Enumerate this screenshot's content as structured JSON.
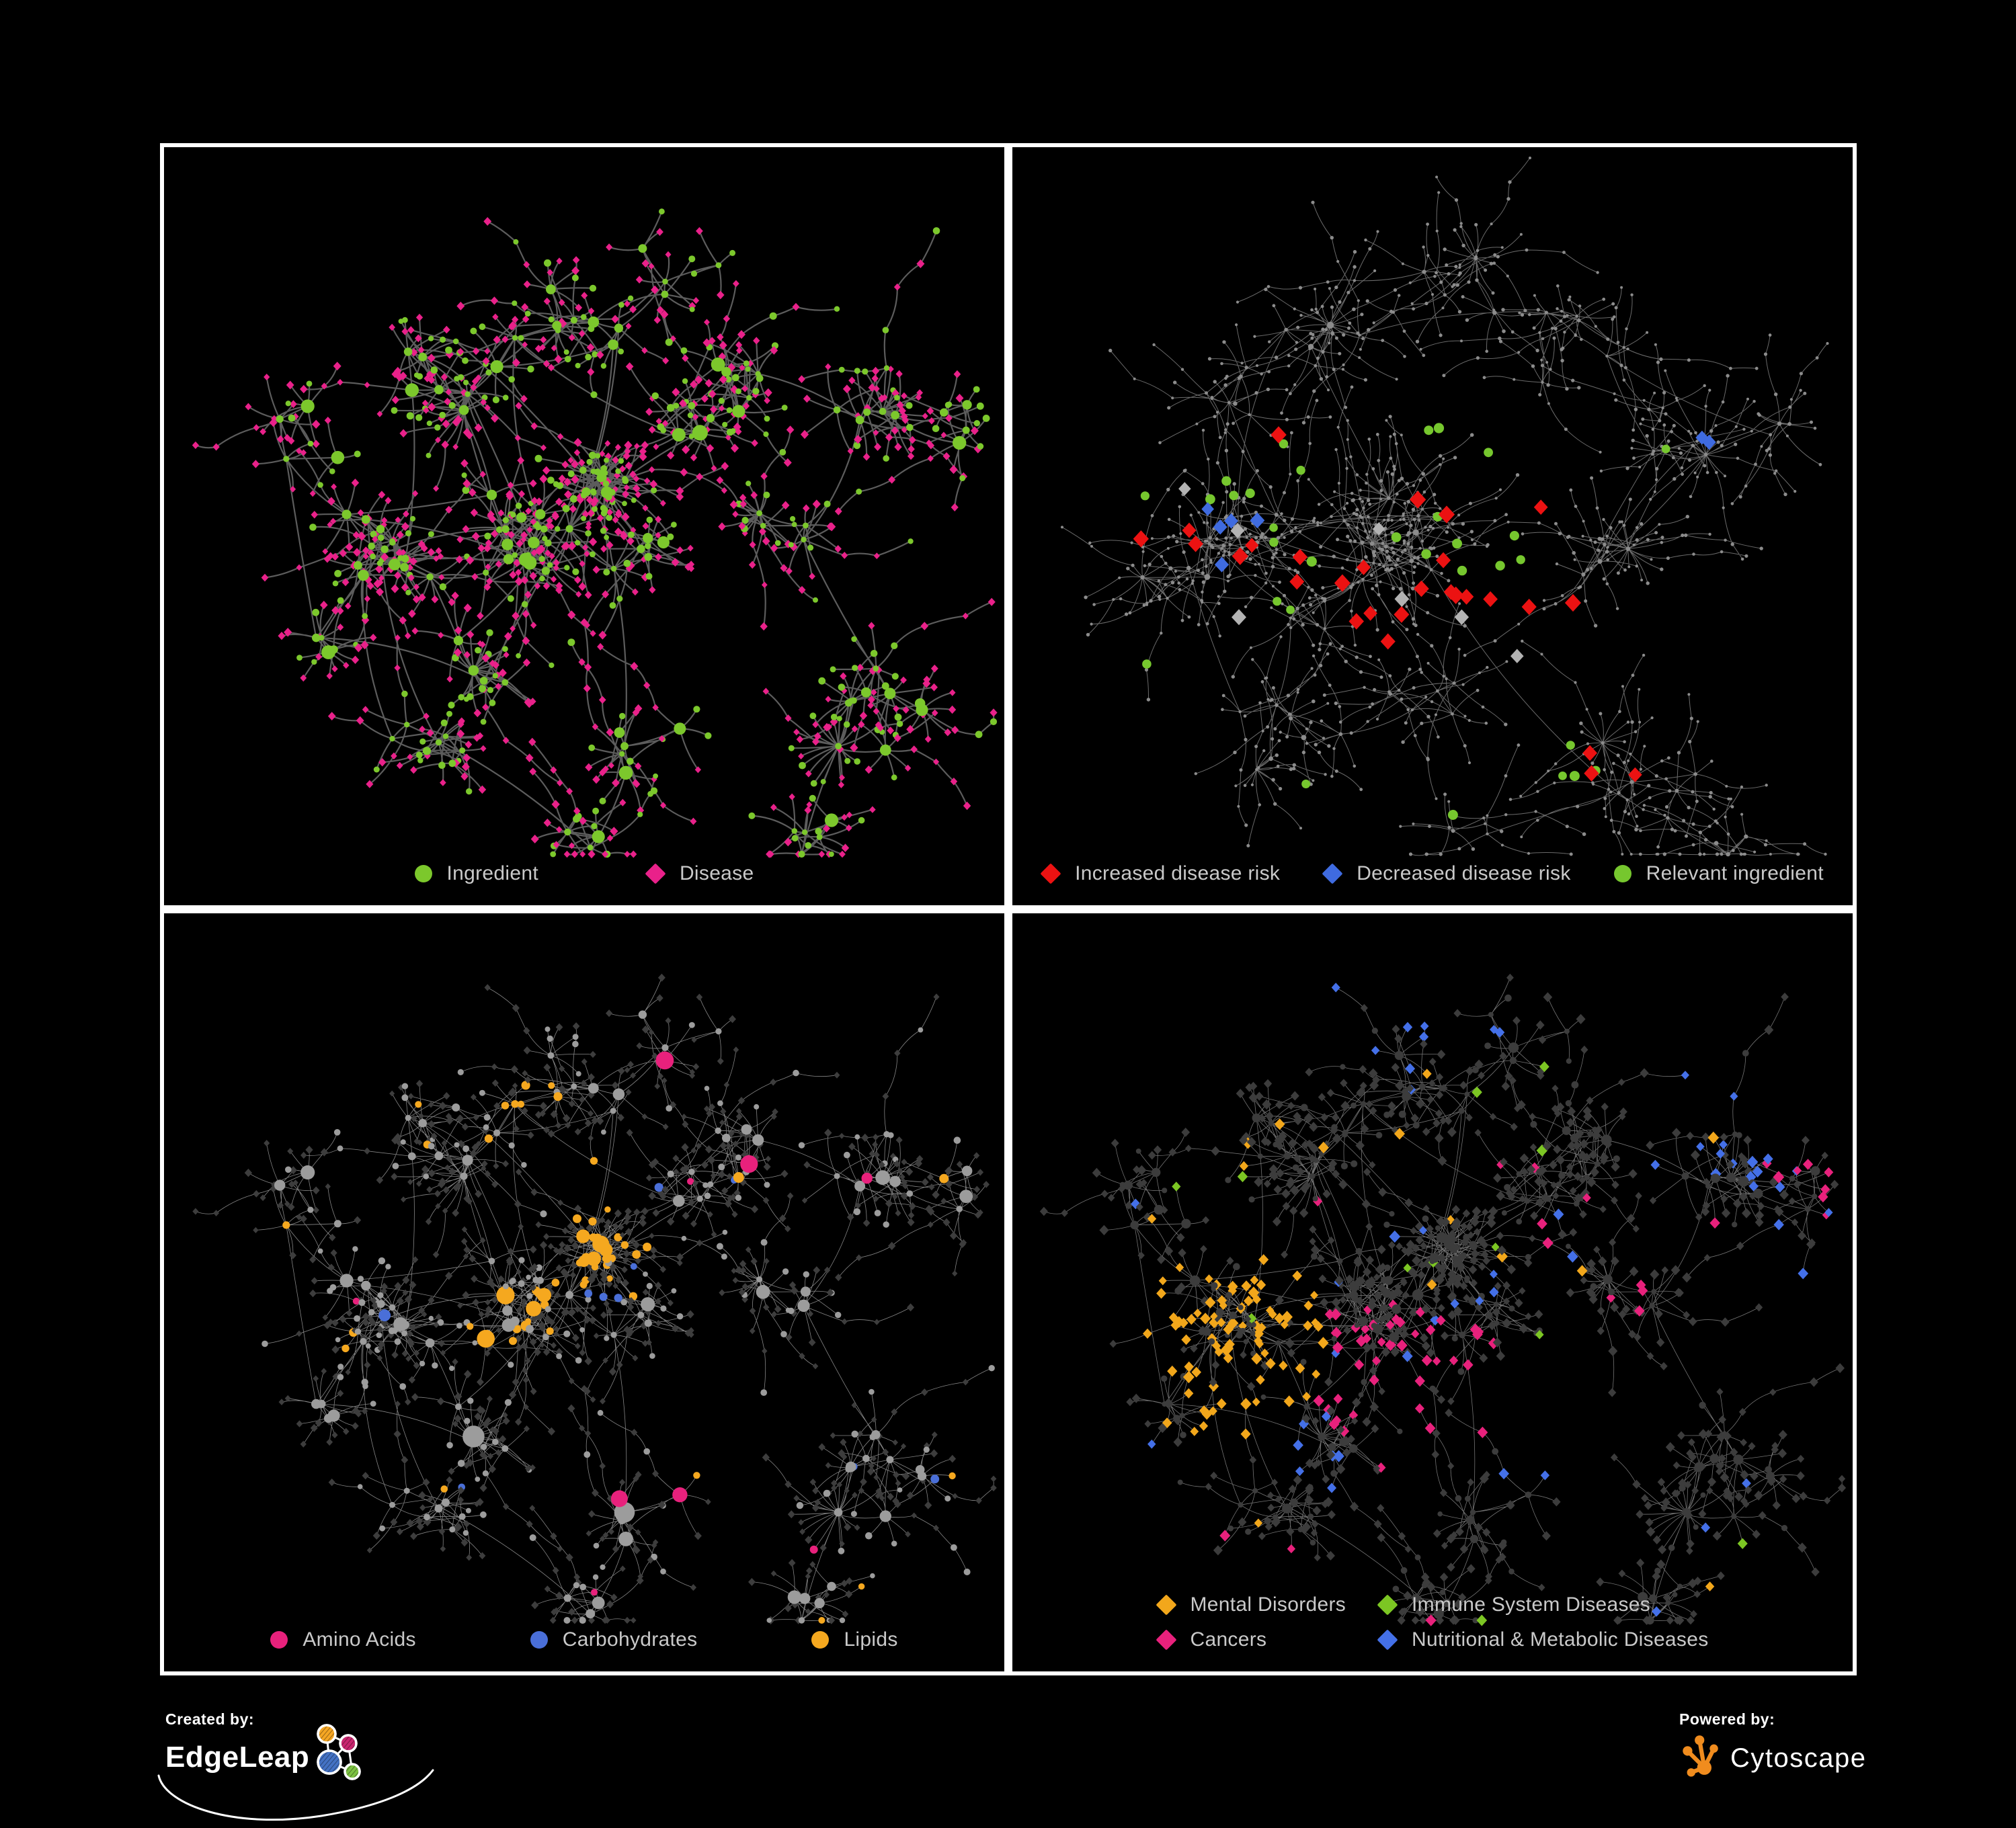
{
  "page": {
    "background": "#000000",
    "frame_color": "#FFFFFF"
  },
  "panels": [
    {
      "key": "ingredient-disease",
      "legend": {
        "columns": 1,
        "gap": 160,
        "items": [
          {
            "shape": "circle",
            "color": "#7CC82C",
            "label": "Ingredient"
          },
          {
            "shape": "diamond",
            "color": "#E9218A",
            "label": "Disease"
          }
        ]
      },
      "network": {
        "layout": "A",
        "seed": 11,
        "edge": {
          "color": "#6C6C6C",
          "width": 2.2,
          "opacity": 0.85
        },
        "hub": {
          "shape": "circle",
          "color": "#7CC82C",
          "rMin": 4.2,
          "rMax": 10.5
        },
        "leafGroups": [
          {
            "shape": "diamond",
            "color": "#E9218A",
            "size": 5.6,
            "weight": 0.72
          },
          {
            "shape": "circle",
            "color": "#7CC82C",
            "size": 4.6,
            "weight": 0.28
          }
        ],
        "recolor": [],
        "overlays": []
      }
    },
    {
      "key": "disease-risk",
      "legend": {
        "columns": 1,
        "gap": 64,
        "items": [
          {
            "shape": "diamond",
            "color": "#EC1212",
            "label": "Increased disease risk"
          },
          {
            "shape": "diamond",
            "color": "#3F6BE0",
            "label": "Decreased disease risk"
          },
          {
            "shape": "circle",
            "color": "#76C72E",
            "label": "Relevant ingredient"
          }
        ]
      },
      "network": {
        "layout": "B",
        "seed": 23,
        "edge": {
          "color": "#767676",
          "width": 1.0,
          "opacity": 0.9
        },
        "hub": {
          "shape": "circle",
          "color": "#8C8C8C",
          "rMin": 2.2,
          "rMax": 3.4
        },
        "leafGroups": [
          {
            "shape": "circle",
            "color": "#8C8C8C",
            "size": 2.3,
            "weight": 1
          }
        ],
        "recolor": [],
        "overlays": [
          {
            "shape": "circle",
            "color": "#76C72E",
            "size": 7,
            "regions": [
              [
                540,
                570,
                260,
                170,
                18
              ],
              [
                290,
                470,
                130,
                70,
                5
              ],
              [
                870,
                930,
                100,
                50,
                4
              ],
              [
                640,
                990,
                26,
                18,
                1
              ],
              [
                980,
                450,
                20,
                15,
                1
              ],
              [
                200,
                755,
                24,
                15,
                1
              ],
              [
                430,
                935,
                24,
                15,
                1
              ]
            ]
          },
          {
            "shape": "diamond",
            "color": "#EC1212",
            "size": 12,
            "regions": [
              [
                545,
                620,
                190,
                120,
                16
              ],
              [
                350,
                560,
                90,
                60,
                4
              ],
              [
                390,
                415,
                20,
                15,
                1
              ],
              [
                780,
                520,
                28,
                18,
                1
              ],
              [
                800,
                660,
                60,
                40,
                2
              ],
              [
                850,
                900,
                80,
                60,
                2
              ],
              [
                925,
                945,
                28,
                18,
                1
              ],
              [
                190,
                595,
                22,
                14,
                1
              ]
            ]
          },
          {
            "shape": "diamond",
            "color": "#3F6BE0",
            "size": 11,
            "regions": [
              [
                320,
                575,
                65,
                55,
                5
              ],
              [
                1028,
                442,
                34,
                18,
                2
              ]
            ]
          },
          {
            "shape": "diamond",
            "color": "#B3B3B3",
            "size": 11,
            "regions": [
              [
                263,
                517,
                14,
                10,
                1
              ],
              [
                350,
                565,
                18,
                12,
                1
              ],
              [
                553,
                567,
                14,
                10,
                1
              ],
              [
                590,
                680,
                18,
                12,
                1
              ],
              [
                660,
                692,
                16,
                10,
                1
              ],
              [
                342,
                705,
                14,
                10,
                1
              ],
              [
                748,
                757,
                14,
                10,
                1
              ]
            ]
          }
        ]
      }
    },
    {
      "key": "ingredient-classes",
      "legend": {
        "columns": 1,
        "gap": 170,
        "items": [
          {
            "shape": "circle",
            "color": "#E8217C",
            "label": "Amino Acids"
          },
          {
            "shape": "circle",
            "color": "#4A6FD8",
            "label": "Carbohydrates"
          },
          {
            "shape": "circle",
            "color": "#F5A81F",
            "label": "Lipids"
          }
        ]
      },
      "network": {
        "layout": "A",
        "seed": 37,
        "edge": {
          "color": "#A8A8A8",
          "width": 0.8,
          "opacity": 0.8
        },
        "hub": {
          "shape": "circle",
          "color": "#9C9C9C",
          "rMin": 4.5,
          "rMax": 11
        },
        "leafGroups": [
          {
            "shape": "diamond",
            "color": "#3D3D3D",
            "size": 5.2,
            "weight": 0.78
          },
          {
            "shape": "circle",
            "color": "#9C9C9C",
            "size": 4.4,
            "weight": 0.22
          }
        ],
        "recolor": [
          {
            "target": "circle",
            "color": "#F5A81F",
            "prob": 0.85,
            "region": [
              648,
              498,
              78,
              66
            ],
            "sizeMult": 1.25
          },
          {
            "target": "circle",
            "color": "#4A6FD8",
            "prob": 0.5,
            "region": [
              648,
              498,
              95,
              82
            ],
            "sizeMult": 1.25
          },
          {
            "target": "circle",
            "color": "#F5A81F",
            "prob": 0.3,
            "region": [
              560,
              650,
              150,
              100
            ],
            "sizeMult": 1.25
          },
          {
            "target": "circle",
            "color": "#F5A81F",
            "prob": 0.28,
            "region": [
              470,
              295,
              150,
              75
            ],
            "sizeMult": 1.25
          },
          {
            "target": "circle",
            "color": "#F5A81F",
            "prob": 0.5,
            "region": [
              760,
              700,
              95,
              65
            ],
            "sizeMult": 1.25
          },
          {
            "target": "circle",
            "color": "#F5A81F",
            "prob": 0.3,
            "region": [
              350,
              800,
              65,
              55
            ],
            "sizeMult": 1.25
          },
          {
            "target": "circle",
            "color": "#4A6FD8",
            "prob": 0.012,
            "region": [
              625,
              560,
              900,
              900
            ],
            "sizeMult": 1.3
          },
          {
            "target": "circle",
            "color": "#E8217C",
            "prob": 0.04,
            "region": [
              625,
              560,
              900,
              900
            ],
            "sizeMult": 1.3
          },
          {
            "target": "circle",
            "color": "#F5A81F",
            "prob": 0.05,
            "region": [
              625,
              560,
              900,
              900
            ],
            "sizeMult": 1.25
          }
        ],
        "overlays": []
      }
    },
    {
      "key": "disease-classes",
      "legend": {
        "columns": 2,
        "col_gap": 48,
        "row_gap": 18,
        "items": [
          {
            "shape": "diamond",
            "color": "#F2A71B",
            "label": "Mental Disorders"
          },
          {
            "shape": "diamond",
            "color": "#7CC623",
            "label": "Immune System Diseases"
          },
          {
            "shape": "diamond",
            "color": "#E8217C",
            "label": "Cancers"
          },
          {
            "shape": "diamond",
            "color": "#4470E8",
            "label": "Nutritional & Metabolic Diseases"
          }
        ]
      },
      "network": {
        "layout": "A",
        "seed": 53,
        "edge": {
          "color": "#9B9B9B",
          "width": 0.8,
          "opacity": 0.75
        },
        "hub": {
          "shape": "circle",
          "color": "#3C3C3C",
          "rMin": 4,
          "rMax": 8
        },
        "leafGroups": [
          {
            "shape": "diamond",
            "color": "#3C3C3C",
            "size": 6.4,
            "weight": 0.9
          },
          {
            "shape": "circle",
            "color": "#3C3C3C",
            "size": 4.5,
            "weight": 0.1
          }
        ],
        "recolor": [
          {
            "target": "diamond",
            "color": "#F2A71B",
            "prob": 0.8,
            "region": [
              310,
              640,
              165,
              140
            ],
            "sizeMult": 1.2
          },
          {
            "target": "diamond",
            "color": "#F2A71B",
            "prob": 0.5,
            "region": [
              215,
              965,
              55,
              38
            ],
            "sizeMult": 1.2
          },
          {
            "target": "diamond",
            "color": "#E8217C",
            "prob": 0.45,
            "region": [
              590,
              700,
              160,
              120
            ],
            "sizeMult": 1.2
          },
          {
            "target": "diamond",
            "color": "#E8217C",
            "prob": 0.45,
            "region": [
              1185,
              395,
              72,
              58
            ],
            "sizeMult": 1.2
          },
          {
            "target": "diamond",
            "color": "#4470E8",
            "prob": 0.55,
            "region": [
              790,
              770,
              105,
              85
            ],
            "sizeMult": 1.2
          },
          {
            "target": "diamond",
            "color": "#4470E8",
            "prob": 0.4,
            "region": [
              600,
              140,
              200,
              100
            ],
            "sizeMult": 1.2
          },
          {
            "target": "diamond",
            "color": "#4470E8",
            "prob": 0.45,
            "region": [
              320,
              175,
              95,
              65
            ],
            "sizeMult": 1.2
          },
          {
            "target": "diamond",
            "color": "#4470E8",
            "prob": 0.4,
            "region": [
              1060,
              300,
              160,
              130
            ],
            "sizeMult": 1.2
          },
          {
            "target": "diamond",
            "color": "#4470E8",
            "prob": 0.5,
            "region": [
              1185,
              505,
              85,
              65
            ],
            "sizeMult": 1.2
          },
          {
            "target": "diamond",
            "color": "#4470E8",
            "prob": 0.3,
            "region": [
              450,
              800,
              95,
              75
            ],
            "sizeMult": 1.2
          },
          {
            "target": "diamond",
            "color": "#4470E8",
            "prob": 0.35,
            "region": [
              420,
              1060,
              105,
              65
            ],
            "sizeMult": 1.2
          },
          {
            "target": "diamond",
            "color": "#E8217C",
            "prob": 0.35,
            "region": [
              660,
              1090,
              95,
              55
            ],
            "sizeMult": 1.2
          },
          {
            "target": "diamond",
            "color": "#E8217C",
            "prob": 0.35,
            "region": [
              350,
              950,
              75,
              55
            ],
            "sizeMult": 1.2
          },
          {
            "target": "diamond",
            "color": "#7CC623",
            "prob": 0.012,
            "region": [
              625,
              560,
              900,
              900
            ],
            "sizeMult": 1.2
          },
          {
            "target": "diamond",
            "color": "#4470E8",
            "prob": 0.03,
            "region": [
              625,
              560,
              900,
              900
            ],
            "sizeMult": 1.2
          },
          {
            "target": "diamond",
            "color": "#E8217C",
            "prob": 0.022,
            "region": [
              625,
              560,
              900,
              900
            ],
            "sizeMult": 1.2
          },
          {
            "target": "diamond",
            "color": "#F2A71B",
            "prob": 0.012,
            "region": [
              625,
              560,
              900,
              900
            ],
            "sizeMult": 1.2
          }
        ],
        "overlays": []
      }
    }
  ],
  "layouts": {
    "A": {
      "seed": 41,
      "extra": 20,
      "leafMin": 3,
      "leafMax": 8,
      "bigChance": 0.06,
      "bigMin": 14,
      "bigVar": 12,
      "r0": 26,
      "rv": 44,
      "sub": 0.16,
      "clusters": [
        [
          330,
          600,
          80,
          70,
          15
        ],
        [
          540,
          595,
          95,
          80,
          18
        ],
        [
          648,
          495,
          42,
          36,
          12
        ],
        [
          700,
          600,
          60,
          45,
          5
        ],
        [
          420,
          330,
          110,
          80,
          8
        ],
        [
          600,
          250,
          110,
          80,
          8
        ],
        [
          780,
          420,
          70,
          60,
          5
        ],
        [
          880,
          330,
          80,
          70,
          6
        ],
        [
          1060,
          390,
          90,
          70,
          7
        ],
        [
          1180,
          430,
          60,
          50,
          4
        ],
        [
          930,
          560,
          70,
          50,
          4
        ],
        [
          1070,
          820,
          90,
          80,
          8
        ],
        [
          950,
          1030,
          80,
          50,
          5
        ],
        [
          700,
          880,
          80,
          60,
          5
        ],
        [
          630,
          1010,
          60,
          40,
          4
        ],
        [
          400,
          880,
          90,
          70,
          7
        ],
        [
          230,
          750,
          70,
          60,
          4
        ],
        [
          200,
          450,
          80,
          70,
          5
        ],
        [
          760,
          180,
          80,
          50,
          4
        ],
        [
          480,
          760,
          70,
          50,
          5
        ]
      ]
    },
    "B": {
      "seed": 97,
      "extra": 16,
      "leafMin": 2,
      "leafMax": 6,
      "bigChance": 0.07,
      "bigMin": 12,
      "bigVar": 12,
      "r0": 22,
      "rv": 40,
      "sub": 0.5,
      "clusters": [
        [
          560,
          585,
          105,
          90,
          20
        ],
        [
          330,
          580,
          80,
          70,
          13
        ],
        [
          450,
          700,
          60,
          50,
          5
        ],
        [
          480,
          260,
          120,
          90,
          9
        ],
        [
          640,
          180,
          110,
          80,
          8
        ],
        [
          850,
          300,
          110,
          90,
          8
        ],
        [
          1020,
          440,
          90,
          70,
          7
        ],
        [
          1140,
          430,
          50,
          40,
          3
        ],
        [
          950,
          950,
          100,
          80,
          8
        ],
        [
          700,
          1000,
          70,
          50,
          4
        ],
        [
          400,
          890,
          110,
          80,
          8
        ],
        [
          210,
          620,
          60,
          60,
          4
        ],
        [
          620,
          810,
          70,
          50,
          6
        ],
        [
          870,
          620,
          70,
          60,
          5
        ],
        [
          1080,
          1040,
          70,
          40,
          4
        ],
        [
          300,
          400,
          70,
          60,
          5
        ]
      ]
    }
  },
  "footer": {
    "created_by": "Created by:",
    "edgeleap": "EdgeLeap",
    "powered_by": "Powered by:",
    "cytoscape": "Cytoscape",
    "edgeleap_colors": {
      "orange": "#F5A623",
      "magenta": "#C9266F",
      "blue": "#4472C4",
      "green": "#7DC242"
    },
    "cytoscape_orange": "#F08C1E"
  }
}
